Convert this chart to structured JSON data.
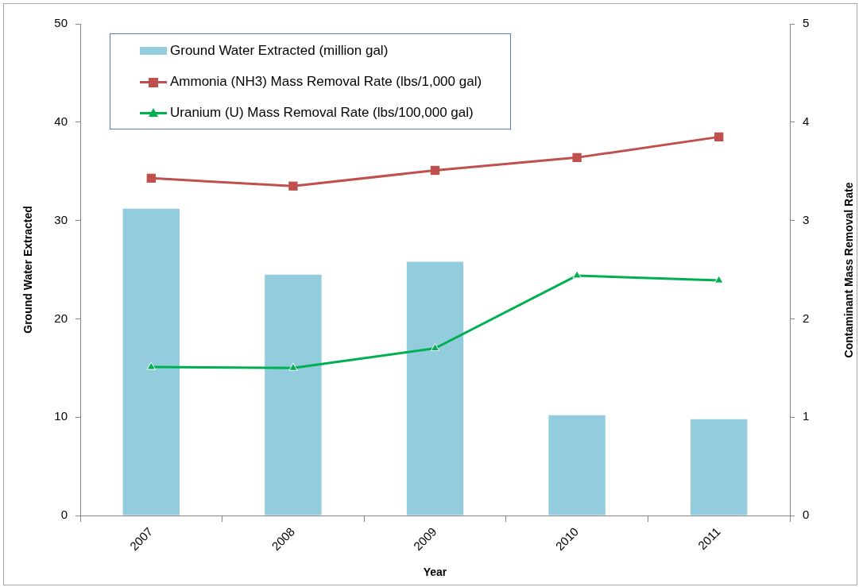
{
  "chart_data": {
    "type": "bar",
    "xlabel": "Year",
    "ylabel": "Ground Water Extracted",
    "y2label": "Contaminant Mass Removal Rate",
    "categories": [
      "2007",
      "2008",
      "2009",
      "2010",
      "2011"
    ],
    "series": [
      {
        "name": "Ground Water Extracted (million gal)",
        "color": "#93cddd",
        "values": [
          31.2,
          24.5,
          25.8,
          10.2,
          9.8
        ]
      },
      {
        "name": "Ammonia (NH3) Mass Removal Rate (lbs/1,000 gal)",
        "type": "line",
        "axis": "y2",
        "color": "#c0504d",
        "marker": "square",
        "values": [
          3.43,
          3.35,
          3.51,
          3.64,
          3.85
        ]
      },
      {
        "name": "Uranium (U) Mass Removal Rate (lbs/100,000 gal)",
        "type": "line",
        "axis": "y2",
        "color": "#00b050",
        "marker": "triangle",
        "values": [
          1.51,
          1.5,
          1.7,
          2.44,
          2.39
        ]
      }
    ],
    "ylim": [
      0,
      50
    ],
    "yticks": [
      0,
      10,
      20,
      30,
      40,
      50
    ],
    "y2lim": [
      0,
      5
    ],
    "y2ticks": [
      0,
      1,
      2,
      3,
      4,
      5
    ],
    "legend": "top left"
  }
}
